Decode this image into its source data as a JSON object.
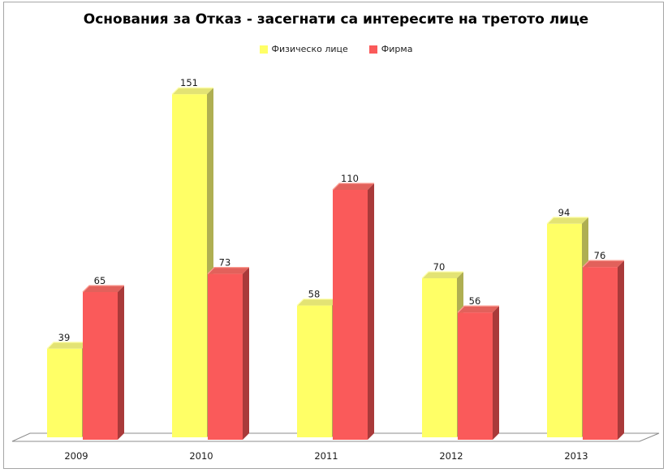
{
  "title": "Основания за Отказ - засегнати са интересите на третото лице",
  "legend": {
    "items": [
      {
        "label": "Физическо лице"
      },
      {
        "label": "Фирма"
      }
    ]
  },
  "chart_data": {
    "type": "bar",
    "style": "3d-clustered-column",
    "title": "Основания за Отказ - засегнати са интересите на третото лице",
    "categories": [
      "2009",
      "2010",
      "2011",
      "2012",
      "2013"
    ],
    "series": [
      {
        "name": "Физическо лице",
        "values": [
          39,
          151,
          58,
          70,
          94
        ],
        "faces": {
          "front": "#FFFF66",
          "top": "#E3E374",
          "side": "#AFAF52",
          "highlight": "#FFFFB0"
        }
      },
      {
        "name": "Фирма",
        "values": [
          65,
          73,
          110,
          56,
          76
        ],
        "faces": {
          "front": "#FA5A5A",
          "top": "#E2615B",
          "side": "#A93A3A",
          "highlight": "#FC9C92"
        }
      }
    ],
    "data_labels": true,
    "legend_position": "top",
    "value_axis_visible": false,
    "gridlines": false,
    "floor_outline_color": "#8c8c8c",
    "label_color": "#1a1a1a",
    "xlabel": "",
    "ylabel": ""
  }
}
